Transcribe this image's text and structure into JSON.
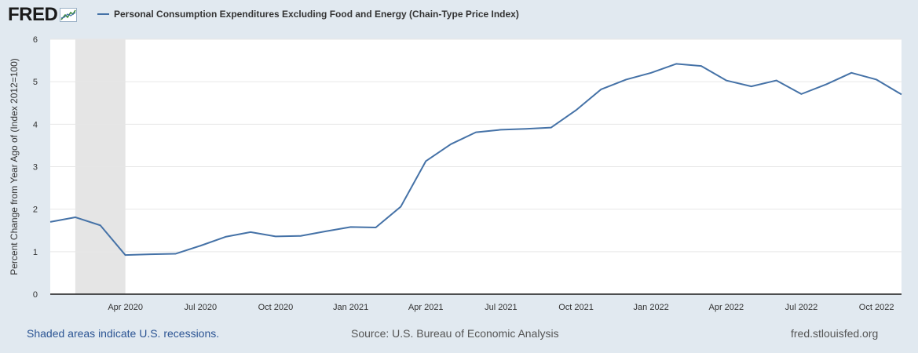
{
  "header": {
    "logo_text": "FRED"
  },
  "legend": {
    "label": "Personal Consumption Expenditures Excluding Food and Energy (Chain-Type Price Index)",
    "color": "#4572a7"
  },
  "footer": {
    "recession_note": "Shaded areas indicate U.S. recessions.",
    "source": "Source: U.S. Bureau of Economic Analysis",
    "site": "fred.stlouisfed.org"
  },
  "chart_data": {
    "type": "line",
    "title": "",
    "xlabel": "",
    "ylabel": "Percent Change from Year Ago of (Index 2012=100)",
    "ylim": [
      0,
      6
    ],
    "yticks": [
      0,
      1,
      2,
      3,
      4,
      5,
      6
    ],
    "grid": true,
    "x": [
      "2020-01",
      "2020-02",
      "2020-03",
      "2020-04",
      "2020-05",
      "2020-06",
      "2020-07",
      "2020-08",
      "2020-09",
      "2020-10",
      "2020-11",
      "2020-12",
      "2021-01",
      "2021-02",
      "2021-03",
      "2021-04",
      "2021-05",
      "2021-06",
      "2021-07",
      "2021-08",
      "2021-09",
      "2021-10",
      "2021-11",
      "2021-12",
      "2022-01",
      "2022-02",
      "2022-03",
      "2022-04",
      "2022-05",
      "2022-06",
      "2022-07",
      "2022-08",
      "2022-09",
      "2022-10",
      "2022-11"
    ],
    "xlim": [
      "2020-01",
      "2022-11"
    ],
    "xticks": [
      {
        "x": "2020-04",
        "label": "Apr 2020"
      },
      {
        "x": "2020-07",
        "label": "Jul 2020"
      },
      {
        "x": "2020-10",
        "label": "Oct 2020"
      },
      {
        "x": "2021-01",
        "label": "Jan 2021"
      },
      {
        "x": "2021-04",
        "label": "Apr 2021"
      },
      {
        "x": "2021-07",
        "label": "Jul 2021"
      },
      {
        "x": "2021-10",
        "label": "Oct 2021"
      },
      {
        "x": "2022-01",
        "label": "Jan 2022"
      },
      {
        "x": "2022-04",
        "label": "Apr 2022"
      },
      {
        "x": "2022-07",
        "label": "Jul 2022"
      },
      {
        "x": "2022-10",
        "label": "Oct 2022"
      }
    ],
    "series": [
      {
        "name": "Personal Consumption Expenditures Excluding Food and Energy (Chain-Type Price Index)",
        "color": "#4572a7",
        "values": [
          1.7,
          1.81,
          1.62,
          0.92,
          0.94,
          0.95,
          1.14,
          1.35,
          1.46,
          1.36,
          1.37,
          1.48,
          1.58,
          1.57,
          2.06,
          3.13,
          3.53,
          3.81,
          3.87,
          3.89,
          3.92,
          4.33,
          4.82,
          5.05,
          5.21,
          5.42,
          5.37,
          5.03,
          4.89,
          5.03,
          4.71,
          4.94,
          5.21,
          5.05,
          4.7
        ]
      }
    ],
    "recessions": [
      {
        "start": "2020-02",
        "end": "2020-04"
      }
    ]
  }
}
